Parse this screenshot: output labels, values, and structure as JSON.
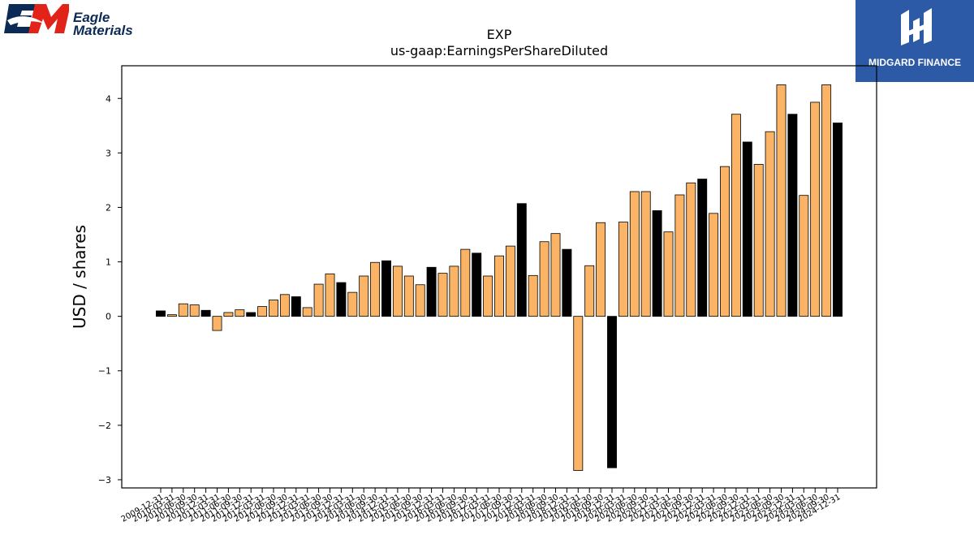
{
  "logos": {
    "company": {
      "line1": "Eagle",
      "line2": "Materials"
    },
    "publisher": {
      "text": "MIDGARD FINANCE"
    }
  },
  "colors": {
    "annual_bar": "#000000",
    "quarterly_bar": "#fbb365",
    "publisher_bg": "#2d5aa6",
    "company_red": "#e2231a",
    "company_navy": "#0b2a55"
  },
  "chart_data": {
    "type": "bar",
    "title": "EXP",
    "subtitle": "us-gaap:EarningsPerShareDiluted",
    "xlabel": "",
    "ylabel": "USD / shares",
    "ylim": [
      -3.15,
      4.6
    ],
    "yticks": [
      -3,
      -2,
      -1,
      0,
      1,
      2,
      3,
      4
    ],
    "ytick_labels": [
      "−3",
      "−2",
      "−1",
      "0",
      "1",
      "2",
      "3",
      "4"
    ],
    "grid": false,
    "categories": [
      "2009-12-31",
      "2010-03-31",
      "2010-06-30",
      "2010-09-30",
      "2010-12-31",
      "2011-03-31",
      "2011-06-30",
      "2011-09-30",
      "2011-12-31",
      "2012-03-31",
      "2012-06-30",
      "2012-09-30",
      "2012-12-31",
      "2013-03-31",
      "2013-06-30",
      "2013-09-30",
      "2013-12-31",
      "2014-03-31",
      "2014-06-30",
      "2014-09-30",
      "2014-12-31",
      "2015-03-31",
      "2015-06-30",
      "2015-09-30",
      "2015-12-31",
      "2016-03-31",
      "2016-06-30",
      "2016-09-30",
      "2016-12-31",
      "2017-03-31",
      "2017-06-30",
      "2017-09-30",
      "2017-12-31",
      "2018-03-31",
      "2018-06-30",
      "2018-09-30",
      "2018-12-31",
      "2019-03-31",
      "2019-06-30",
      "2019-09-30",
      "2019-12-31",
      "2020-03-31",
      "2020-06-30",
      "2020-09-30",
      "2020-12-31",
      "2021-03-31",
      "2021-06-30",
      "2021-09-30",
      "2021-12-31",
      "2022-03-31",
      "2022-06-30",
      "2022-09-30",
      "2022-12-31",
      "2023-03-31",
      "2023-06-30",
      "2023-09-30",
      "2023-12-31",
      "2024-03-31",
      "2024-06-30",
      "2024-09-30",
      "2024-12-31"
    ],
    "values": [
      0.1,
      0.03,
      0.23,
      0.21,
      0.11,
      -0.26,
      0.07,
      0.12,
      0.07,
      0.18,
      0.3,
      0.4,
      0.36,
      0.16,
      0.59,
      0.78,
      0.62,
      0.44,
      0.74,
      0.99,
      1.02,
      0.92,
      0.74,
      0.58,
      0.9,
      0.79,
      0.92,
      1.23,
      1.16,
      0.74,
      1.11,
      1.29,
      2.07,
      0.75,
      1.37,
      1.52,
      1.23,
      -2.83,
      0.93,
      1.72,
      -2.78,
      1.73,
      2.29,
      2.29,
      1.94,
      1.55,
      2.23,
      2.45,
      2.52,
      1.89,
      2.75,
      3.71,
      3.2,
      2.79,
      3.39,
      4.25,
      3.71,
      2.22,
      3.93,
      4.25,
      3.55
    ],
    "annual_flags": [
      1,
      0,
      0,
      0,
      1,
      0,
      0,
      0,
      1,
      0,
      0,
      0,
      1,
      0,
      0,
      0,
      1,
      0,
      0,
      0,
      1,
      0,
      0,
      0,
      1,
      0,
      0,
      0,
      1,
      0,
      0,
      0,
      1,
      0,
      0,
      0,
      1,
      0,
      0,
      0,
      1,
      0,
      0,
      0,
      1,
      0,
      0,
      0,
      1,
      0,
      0,
      0,
      1,
      0,
      0,
      0,
      1,
      0,
      0,
      0,
      1
    ]
  }
}
